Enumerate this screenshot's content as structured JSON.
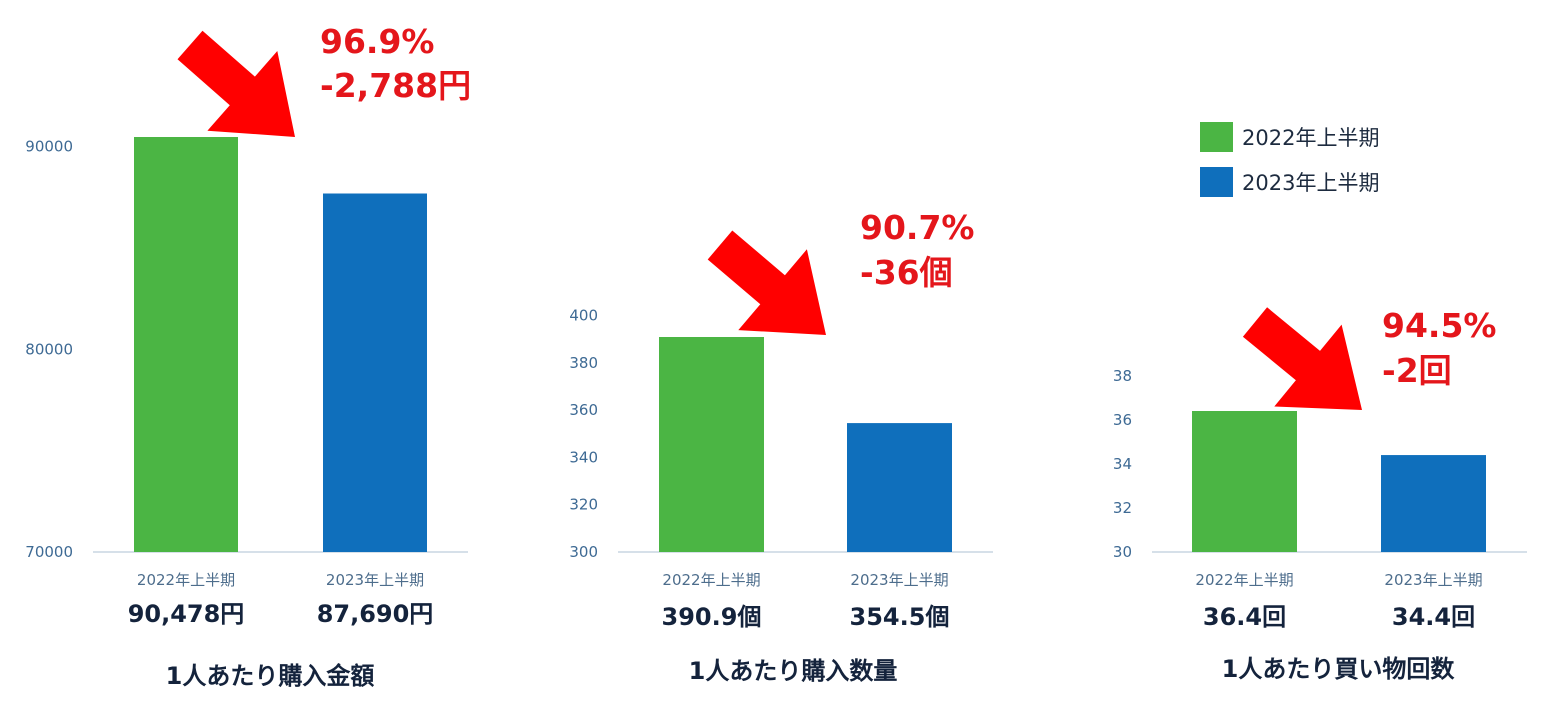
{
  "legend": [
    {
      "label": "2022年上半期",
      "color": "#4bb544"
    },
    {
      "label": "2023年上半期",
      "color": "#0f6fbc"
    }
  ],
  "arrow_color": "#ff0000",
  "chart_data": [
    {
      "type": "bar",
      "title": "1人あたり購入金額",
      "categories": [
        "2022年上半期",
        "2023年上半期"
      ],
      "values": [
        90478,
        87690
      ],
      "value_labels": [
        "90,478円",
        "87,690円"
      ],
      "yticks": [
        "70000",
        "80000",
        "90000"
      ],
      "ylim": [
        70000,
        96000
      ],
      "annotation": [
        "96.9%",
        "-2,788円"
      ]
    },
    {
      "type": "bar",
      "title": "1人あたり購入数量",
      "categories": [
        "2022年上半期",
        "2023年上半期"
      ],
      "values": [
        390.9,
        354.5
      ],
      "value_labels": [
        "390.9個",
        "354.5個"
      ],
      "yticks": [
        "300",
        "320",
        "340",
        "360",
        "380",
        "400"
      ],
      "ylim": [
        300,
        410
      ],
      "annotation": [
        "90.7%",
        "-36個"
      ]
    },
    {
      "type": "bar",
      "title": "1人あたり買い物回数",
      "categories": [
        "2022年上半期",
        "2023年上半期"
      ],
      "values": [
        36.4,
        34.4
      ],
      "value_labels": [
        "36.4回",
        "34.4回"
      ],
      "yticks": [
        "30",
        "32",
        "34",
        "36",
        "38"
      ],
      "ylim": [
        30,
        39
      ],
      "annotation": [
        "94.5%",
        "-2回"
      ]
    }
  ]
}
